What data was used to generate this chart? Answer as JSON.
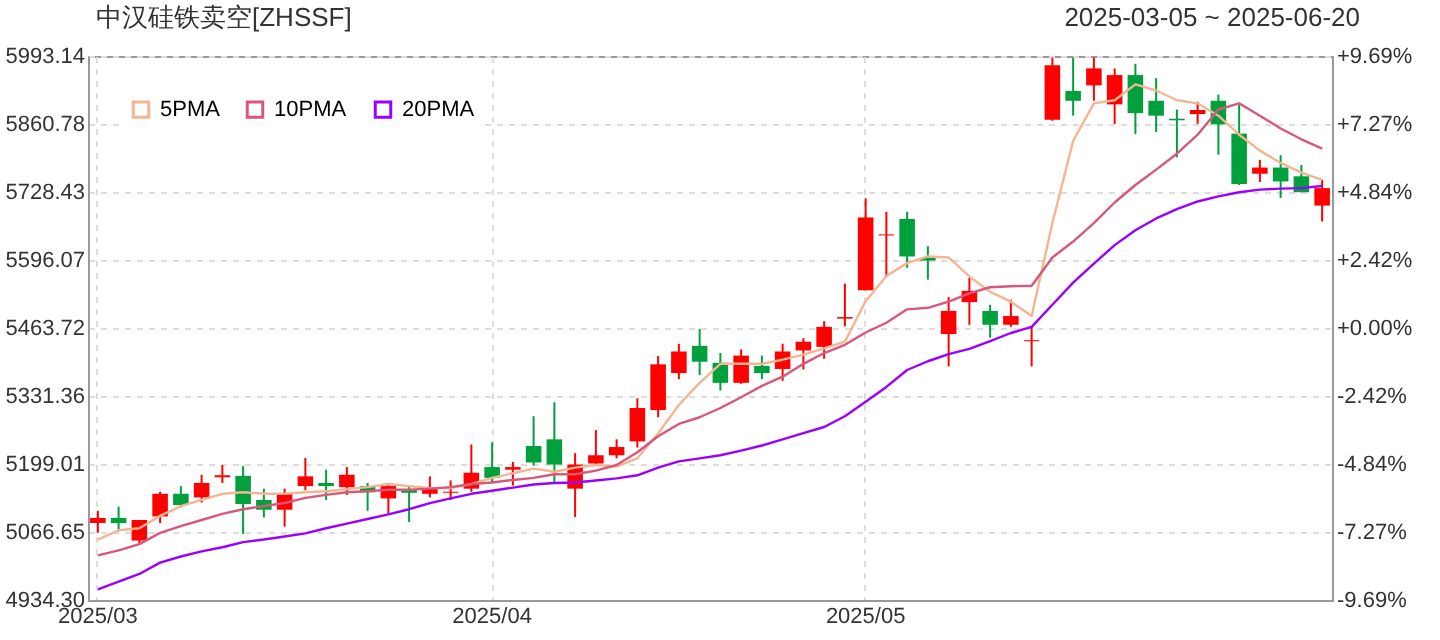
{
  "chart_data": {
    "type": "candlestick",
    "title": "中汉硅铁卖空[ZHSSF]",
    "subtitle": "2025-03-05 ~ 2025-06-20",
    "categories": [
      "2025/03",
      null,
      null,
      null,
      null,
      null,
      null,
      null,
      null,
      null,
      null,
      null,
      null,
      null,
      null,
      null,
      null,
      null,
      null,
      "2025/04",
      null,
      null,
      null,
      null,
      null,
      null,
      null,
      null,
      null,
      null,
      null,
      null,
      null,
      null,
      null,
      null,
      null,
      "2025/05",
      null,
      null,
      null,
      null,
      null,
      null,
      null,
      null,
      null,
      null,
      null,
      null,
      null,
      null,
      null,
      null,
      null,
      null,
      null,
      null,
      null,
      null
    ],
    "ohlc": [
      [
        5084,
        5108,
        5065,
        5094
      ],
      [
        5094,
        5116,
        5068,
        5084
      ],
      [
        5050,
        5090,
        5043,
        5090
      ],
      [
        5097,
        5145,
        5084,
        5141
      ],
      [
        5141,
        5156,
        5114,
        5119
      ],
      [
        5134,
        5178,
        5124,
        5162
      ],
      [
        5173,
        5197,
        5162,
        5177
      ],
      [
        5176,
        5195,
        5063,
        5121
      ],
      [
        5129,
        5151,
        5095,
        5110
      ],
      [
        5110,
        5151,
        5077,
        5141
      ],
      [
        5156,
        5211,
        5148,
        5175
      ],
      [
        5162,
        5188,
        5129,
        5156
      ],
      [
        5154,
        5193,
        5139,
        5178
      ],
      [
        5156,
        5162,
        5108,
        5144
      ],
      [
        5132,
        5162,
        5102,
        5156
      ],
      [
        5150,
        5156,
        5086,
        5143
      ],
      [
        5141,
        5175,
        5134,
        5151
      ],
      [
        5143,
        5167,
        5129,
        5145
      ],
      [
        5151,
        5237,
        5145,
        5182
      ],
      [
        5193,
        5241,
        5164,
        5172
      ],
      [
        5188,
        5203,
        5157,
        5193
      ],
      [
        5234,
        5292,
        5196,
        5202
      ],
      [
        5247,
        5319,
        5161,
        5198
      ],
      [
        5151,
        5220,
        5096,
        5198
      ],
      [
        5200,
        5265,
        5195,
        5216
      ],
      [
        5216,
        5247,
        5210,
        5232
      ],
      [
        5243,
        5327,
        5231,
        5308
      ],
      [
        5304,
        5409,
        5290,
        5393
      ],
      [
        5376,
        5433,
        5364,
        5418
      ],
      [
        5429,
        5462,
        5372,
        5398
      ],
      [
        5396,
        5415,
        5342,
        5357
      ],
      [
        5357,
        5422,
        5355,
        5410
      ],
      [
        5390,
        5410,
        5364,
        5376
      ],
      [
        5384,
        5433,
        5361,
        5418
      ],
      [
        5420,
        5444,
        5383,
        5437
      ],
      [
        5427,
        5477,
        5404,
        5466
      ],
      [
        5482,
        5550,
        5467,
        5485
      ],
      [
        5537,
        5716,
        5537,
        5679
      ],
      [
        5644,
        5690,
        5563,
        5646
      ],
      [
        5676,
        5690,
        5581,
        5603
      ],
      [
        5600,
        5623,
        5558,
        5595
      ],
      [
        5452,
        5524,
        5389,
        5497
      ],
      [
        5514,
        5561,
        5470,
        5536
      ],
      [
        5497,
        5509,
        5445,
        5470
      ],
      [
        5470,
        5519,
        5466,
        5487
      ],
      [
        5438,
        5466,
        5389,
        5440
      ],
      [
        5869,
        5990,
        5867,
        5975
      ],
      [
        5925,
        5990,
        5877,
        5906
      ],
      [
        5936,
        5990,
        5906,
        5969
      ],
      [
        5899,
        5969,
        5861,
        5956
      ],
      [
        5956,
        5978,
        5841,
        5882
      ],
      [
        5906,
        5950,
        5845,
        5877
      ],
      [
        5871,
        5889,
        5796,
        5868
      ],
      [
        5880,
        5904,
        5861,
        5888
      ],
      [
        5906,
        5918,
        5801,
        5860
      ],
      [
        5842,
        5899,
        5742,
        5744
      ],
      [
        5764,
        5791,
        5748,
        5776
      ],
      [
        5776,
        5800,
        5717,
        5749
      ],
      [
        5759,
        5781,
        5728,
        5728
      ],
      [
        5702,
        5752,
        5671,
        5736
      ]
    ],
    "colors": [
      "#ff0000",
      "#00a03c",
      "#ff0000",
      "#ff0000",
      "#00a03c",
      "#ff0000",
      "#ff0000",
      "#00a03c",
      "#00a03c",
      "#ff0000",
      "#ff0000",
      "#00a03c",
      "#ff0000",
      "#00a03c",
      "#ff0000",
      "#00a03c",
      "#ff0000",
      "#ff0000",
      "#ff0000",
      "#00a03c",
      "#ff0000",
      "#00a03c",
      "#00a03c",
      "#ff0000",
      "#ff0000",
      "#ff0000",
      "#ff0000",
      "#ff0000",
      "#ff0000",
      "#00a03c",
      "#00a03c",
      "#ff0000",
      "#00a03c",
      "#ff0000",
      "#ff0000",
      "#ff0000",
      "#ff0000",
      "#ff0000",
      "#ff0000",
      "#00a03c",
      "#00a03c",
      "#ff0000",
      "#ff0000",
      "#00a03c",
      "#ff0000",
      "#ff0000",
      "#ff0000",
      "#00a03c",
      "#ff0000",
      "#ff0000",
      "#00a03c",
      "#00a03c",
      "#00a03c",
      "#ff0000",
      "#00a03c",
      "#00a03c",
      "#ff0000",
      "#00a03c",
      "#00a03c",
      "#ff0000"
    ],
    "series": [
      {
        "type": "line",
        "name": "5PMA",
        "color": "#f4b593",
        "values": [
          5052,
          5070,
          5074,
          5098,
          5117,
          5129,
          5141,
          5144,
          5141,
          5141,
          5144,
          5146,
          5150,
          5154,
          5160,
          5156,
          5152,
          5152,
          5160,
          5172,
          5181,
          5190,
          5184,
          5192,
          5197,
          5194,
          5210,
          5259,
          5314,
          5357,
          5394,
          5394,
          5394,
          5402,
          5412,
          5424,
          5437,
          5516,
          5565,
          5590,
          5603,
          5601,
          5564,
          5534,
          5515,
          5487,
          5668,
          5828,
          5901,
          5907,
          5938,
          5926,
          5907,
          5901,
          5877,
          5840,
          5809,
          5785,
          5766,
          5752
        ]
      },
      {
        "type": "line",
        "name": "10PMA",
        "color": "#d8577a",
        "values": [
          5021,
          5031,
          5043,
          5065,
          5078,
          5090,
          5102,
          5111,
          5117,
          5123,
          5133,
          5139,
          5144,
          5146,
          5149,
          5149,
          5151,
          5154,
          5160,
          5163,
          5168,
          5172,
          5179,
          5179,
          5186,
          5197,
          5222,
          5253,
          5277,
          5290,
          5308,
          5329,
          5351,
          5369,
          5394,
          5415,
          5431,
          5455,
          5474,
          5500,
          5503,
          5515,
          5531,
          5543,
          5545,
          5546,
          5601,
          5632,
          5668,
          5708,
          5742,
          5772,
          5803,
          5840,
          5889,
          5901,
          5877,
          5852,
          5831,
          5813
        ]
      },
      {
        "type": "line",
        "name": "20PMA",
        "color": "#9900ff",
        "values": [
          4955,
          4970,
          4985,
          5007,
          5019,
          5029,
          5037,
          5047,
          5052,
          5058,
          5064,
          5074,
          5083,
          5092,
          5101,
          5111,
          5123,
          5132,
          5141,
          5147,
          5153,
          5159,
          5162,
          5163,
          5167,
          5171,
          5177,
          5192,
          5204,
          5210,
          5216,
          5225,
          5235,
          5247,
          5259,
          5271,
          5292,
          5320,
          5349,
          5382,
          5399,
          5413,
          5423,
          5438,
          5454,
          5466,
          5509,
          5552,
          5589,
          5625,
          5654,
          5677,
          5695,
          5710,
          5720,
          5728,
          5733,
          5735,
          5736,
          5740
        ]
      }
    ],
    "ylim": [
      4934.3,
      5993.14
    ],
    "yticks": [
      {
        "value": 4934.3,
        "label": "4934.30"
      },
      5066.65,
      5199.01,
      5331.36,
      5463.72,
      5596.07,
      5728.43,
      5860.78,
      5993.14
    ],
    "y2lim": [
      -9.69,
      9.69
    ],
    "y2ticks": [
      {
        "value": -9.69,
        "label": "-9.69%"
      },
      {
        "value": -7.27,
        "label": "-7.27%"
      },
      {
        "value": -4.84,
        "label": "-4.84%"
      },
      {
        "value": -2.42,
        "label": "-2.42%"
      },
      {
        "value": 0,
        "label": "+0.00%"
      },
      {
        "value": 2.42,
        "label": "+2.42%"
      },
      {
        "value": 4.84,
        "label": "+4.84%"
      },
      {
        "value": 7.27,
        "label": "+7.27%"
      },
      {
        "value": 9.69,
        "label": "+9.69%"
      }
    ],
    "grid": true,
    "legend": "top left"
  }
}
